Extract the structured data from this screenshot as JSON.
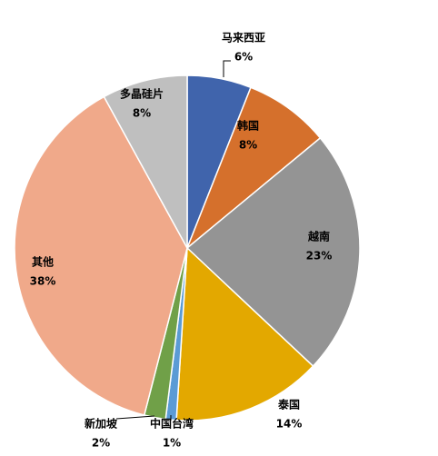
{
  "chart_data": {
    "type": "pie",
    "categories": [
      "马来西亚",
      "韩国",
      "越南",
      "泰国",
      "中国台湾",
      "新加坡",
      "其他",
      "多晶硅片"
    ],
    "values": [
      6,
      8,
      23,
      14,
      1,
      2,
      38,
      8
    ],
    "value_labels": [
      "6%",
      "8%",
      "23%",
      "14%",
      "1%",
      "2%",
      "38%",
      "8%"
    ],
    "colors": [
      "#4064ac",
      "#d5702c",
      "#949494",
      "#e3a800",
      "#5b9bd5",
      "#70a048",
      "#f0a98a",
      "#bfbfbf"
    ]
  }
}
